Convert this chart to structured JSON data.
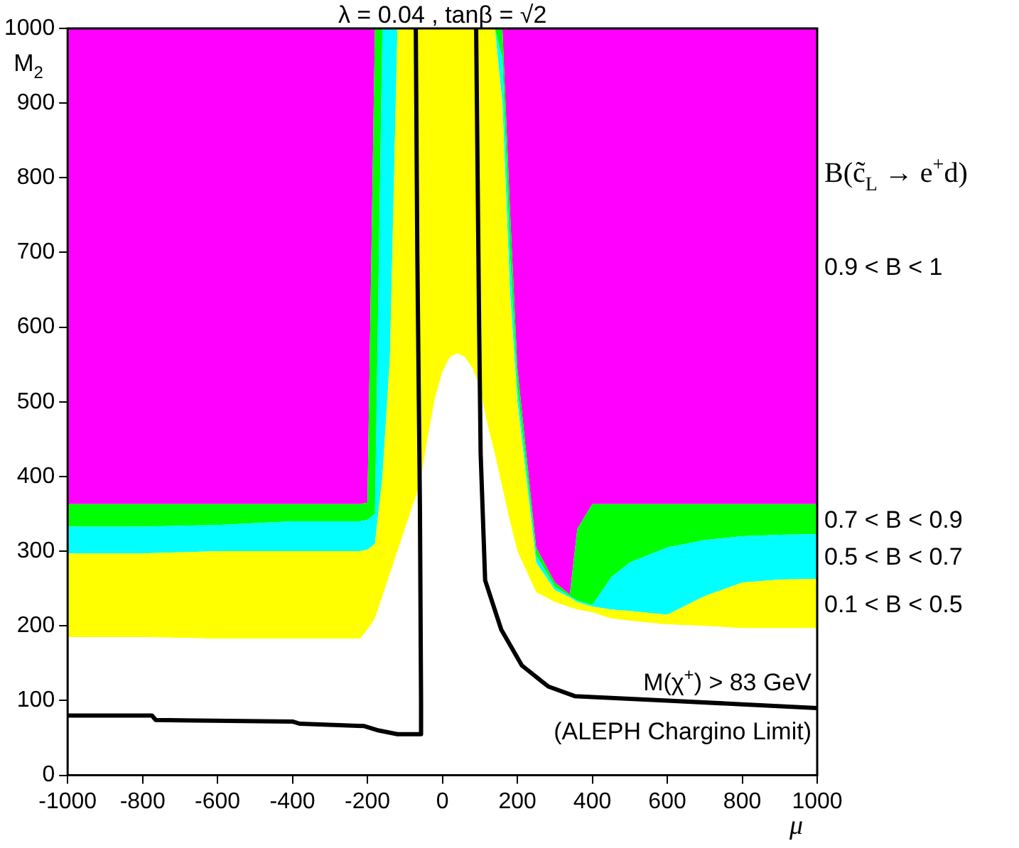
{
  "chart_data": {
    "type": "area",
    "stacked": true,
    "title": "λ = 0.04 , tanβ = √2",
    "xlabel": "μ",
    "ylabel": "M$_{2}$",
    "legend_title": "B(c̃$_{L}$ → e$^{+}$d)",
    "legend": "right",
    "grid": false,
    "annotations": [
      "M(χ$^{+}$) > 83 GeV",
      "(ALEPH Chargino Limit)"
    ],
    "xlim": [
      -1000,
      1000
    ],
    "xticks": [
      -1000,
      -800,
      -600,
      -400,
      -200,
      0,
      200,
      400,
      600,
      800,
      1000
    ],
    "ylim": [
      0,
      1000
    ],
    "yticks": [
      0,
      100,
      200,
      300,
      400,
      500,
      600,
      700,
      800,
      900,
      1000
    ],
    "x": [
      -1000,
      -800,
      -600,
      -400,
      -220,
      -200,
      -180,
      -160,
      -140,
      -120,
      -100,
      -80,
      -60,
      -40,
      -20,
      0,
      20,
      40,
      60,
      80,
      100,
      120,
      140,
      160,
      180,
      200,
      250,
      300,
      340,
      360,
      400,
      450,
      500,
      600,
      700,
      800,
      900,
      1000
    ],
    "series": [
      {
        "color": "#ffffff",
        "values": [
          185,
          185,
          183,
          183,
          183,
          195,
          210,
          240,
          270,
          300,
          330,
          360,
          390,
          450,
          505,
          540,
          560,
          565,
          560,
          545,
          520,
          470,
          430,
          385,
          340,
          300,
          245,
          232,
          225,
          222,
          218,
          210,
          207,
          202,
          200,
          197,
          197,
          197
        ]
      },
      {
        "name": "0.1 < B < 0.5",
        "color": "#ffff00",
        "values": [
          112,
          112,
          117,
          117,
          117,
          107,
          100,
          160,
          290,
          700,
          670,
          640,
          610,
          550,
          495,
          460,
          440,
          435,
          440,
          455,
          480,
          530,
          570,
          515,
          310,
          200,
          40,
          16,
          13,
          10,
          8,
          12,
          13,
          13,
          40,
          61,
          65,
          66
        ]
      },
      {
        "name": "0.5 < B < 0.7",
        "color": "#00ffff",
        "values": [
          36,
          36,
          35,
          40,
          40,
          40,
          40,
          600,
          440,
          0,
          0,
          0,
          0,
          0,
          0,
          0,
          0,
          0,
          0,
          0,
          0,
          0,
          0,
          60,
          50,
          20,
          10,
          4,
          2,
          2,
          2,
          43,
          65,
          90,
          75,
          62,
          60,
          60
        ]
      },
      {
        "name": "0.7 < B < 0.9",
        "color": "#00ff00",
        "values": [
          30,
          30,
          28,
          23,
          23,
          23,
          650,
          0,
          0,
          0,
          0,
          0,
          0,
          0,
          0,
          0,
          0,
          0,
          0,
          0,
          0,
          0,
          0,
          40,
          60,
          25,
          10,
          6,
          2,
          96,
          135,
          98,
          78,
          58,
          48,
          43,
          41,
          40
        ]
      },
      {
        "name": "0.9 < B < 1",
        "color": "#ff00ff",
        "values": [
          637,
          637,
          637,
          637,
          637,
          635,
          0,
          0,
          0,
          0,
          0,
          0,
          0,
          0,
          0,
          0,
          0,
          0,
          0,
          0,
          0,
          0,
          0,
          0,
          240,
          455,
          695,
          742,
          758,
          670,
          637,
          637,
          637,
          637,
          637,
          637,
          637,
          637
        ]
      },
      {
        "type": "line",
        "color": "#000000",
        "x": [
          -1000,
          -775,
          -765,
          -400,
          -380,
          -210,
          -170,
          -120,
          -57,
          -57,
          -60,
          -67,
          -71
        ],
        "values": [
          80,
          80,
          74,
          72,
          69,
          66,
          60,
          55,
          55,
          100,
          360,
          700,
          1000
        ]
      },
      {
        "type": "line",
        "color": "#000000",
        "x": [
          90,
          98,
          102,
          114,
          157,
          212,
          282,
          353,
          600,
          800,
          1000
        ],
        "values": [
          1000,
          600,
          431,
          261,
          195,
          147,
          119,
          106,
          100,
          95,
          90
        ]
      }
    ]
  }
}
